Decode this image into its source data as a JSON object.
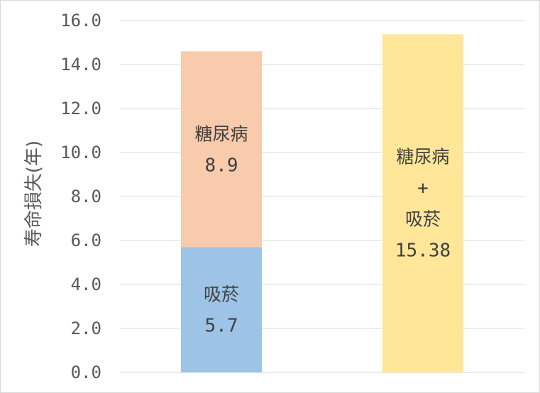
{
  "chart_data": {
    "type": "bar",
    "stacked": true,
    "ylabel": "寿命損失(年)",
    "ylim": [
      0,
      16
    ],
    "yticks": [
      "0.0",
      "2.0",
      "4.0",
      "6.0",
      "8.0",
      "10.0",
      "12.0",
      "14.0",
      "16.0"
    ],
    "grid": true,
    "legend": "none",
    "bars": [
      {
        "segments": [
          {
            "name": "吸菸",
            "value": 5.7,
            "label_lines": [
              "吸菸",
              "5.7"
            ],
            "color": "#9dc3e6"
          },
          {
            "name": "糖尿病",
            "value": 8.9,
            "label_lines": [
              "糖尿病",
              "8.9"
            ],
            "color": "#f8cbad"
          }
        ]
      },
      {
        "segments": [
          {
            "name": "糖尿病+吸菸",
            "value": 15.38,
            "label_lines": [
              "糖尿病",
              "+",
              "吸菸",
              "15.38"
            ],
            "color": "#ffe699"
          }
        ]
      }
    ]
  }
}
